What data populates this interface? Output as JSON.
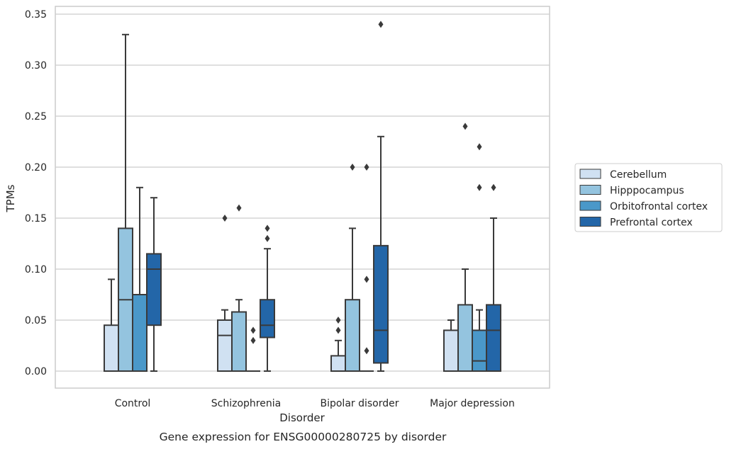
{
  "caption": "Gene expression for ENSG00000280725 by disorder",
  "chart_data": {
    "type": "box",
    "xlabel": "Disorder",
    "ylabel": "TPMs",
    "ylim": [
      -0.017,
      0.357
    ],
    "yticks": [
      0.0,
      0.05,
      0.1,
      0.15,
      0.2,
      0.25,
      0.3,
      0.35
    ],
    "ytick_labels": [
      "0.00",
      "0.05",
      "0.10",
      "0.15",
      "0.20",
      "0.25",
      "0.30",
      "0.35"
    ],
    "grid": "horizontal",
    "legend_position": "right",
    "categories": [
      "Control",
      "Schizophrenia",
      "Bipolar disorder",
      "Major depression"
    ],
    "series": [
      {
        "name": "Cerebellum",
        "color": "#d0e1f2",
        "boxes": [
          {
            "q1": 0.0,
            "median": 0.0,
            "q3": 0.045,
            "whisker_low": 0.0,
            "whisker_high": 0.09,
            "outliers": []
          },
          {
            "q1": 0.0,
            "median": 0.035,
            "q3": 0.05,
            "whisker_low": 0.0,
            "whisker_high": 0.06,
            "outliers": [
              0.15
            ]
          },
          {
            "q1": 0.0,
            "median": 0.0,
            "q3": 0.015,
            "whisker_low": 0.0,
            "whisker_high": 0.03,
            "outliers": [
              0.04,
              0.05
            ]
          },
          {
            "q1": 0.0,
            "median": 0.0,
            "q3": 0.04,
            "whisker_low": 0.0,
            "whisker_high": 0.05,
            "outliers": []
          }
        ]
      },
      {
        "name": "Hipppocampus",
        "color": "#94c4df",
        "boxes": [
          {
            "q1": 0.0,
            "median": 0.07,
            "q3": 0.14,
            "whisker_low": 0.0,
            "whisker_high": 0.33,
            "outliers": []
          },
          {
            "q1": 0.0,
            "median": 0.0,
            "q3": 0.058,
            "whisker_low": 0.0,
            "whisker_high": 0.07,
            "outliers": [
              0.16
            ]
          },
          {
            "q1": 0.0,
            "median": 0.0,
            "q3": 0.07,
            "whisker_low": 0.0,
            "whisker_high": 0.14,
            "outliers": [
              0.2
            ]
          },
          {
            "q1": 0.0,
            "median": 0.0,
            "q3": 0.065,
            "whisker_low": 0.0,
            "whisker_high": 0.1,
            "outliers": [
              0.24
            ]
          }
        ]
      },
      {
        "name": "Orbitofrontal cortex",
        "color": "#4a98c9",
        "boxes": [
          {
            "q1": 0.0,
            "median": 0.0,
            "q3": 0.075,
            "whisker_low": 0.0,
            "whisker_high": 0.18,
            "outliers": []
          },
          {
            "q1": 0.0,
            "median": 0.0,
            "q3": 0.0,
            "whisker_low": 0.0,
            "whisker_high": 0.0,
            "outliers": [
              0.03,
              0.04
            ]
          },
          {
            "q1": 0.0,
            "median": 0.0,
            "q3": 0.0,
            "whisker_low": 0.0,
            "whisker_high": 0.0,
            "outliers": [
              0.02,
              0.09,
              0.2
            ]
          },
          {
            "q1": 0.0,
            "median": 0.01,
            "q3": 0.04,
            "whisker_low": 0.0,
            "whisker_high": 0.06,
            "outliers": [
              0.18,
              0.22
            ]
          }
        ]
      },
      {
        "name": "Prefrontal cortex",
        "color": "#2366a8",
        "boxes": [
          {
            "q1": 0.045,
            "median": 0.1,
            "q3": 0.115,
            "whisker_low": 0.0,
            "whisker_high": 0.17,
            "outliers": []
          },
          {
            "q1": 0.033,
            "median": 0.045,
            "q3": 0.07,
            "whisker_low": 0.0,
            "whisker_high": 0.12,
            "outliers": [
              0.13,
              0.14
            ]
          },
          {
            "q1": 0.008,
            "median": 0.04,
            "q3": 0.123,
            "whisker_low": 0.0,
            "whisker_high": 0.23,
            "outliers": [
              0.34
            ]
          },
          {
            "q1": 0.0,
            "median": 0.04,
            "q3": 0.065,
            "whisker_low": 0.0,
            "whisker_high": 0.15,
            "outliers": [
              0.18
            ]
          }
        ]
      }
    ],
    "colors": {
      "edge": "#3a3a3a",
      "grid": "#cccccc",
      "frame": "#cccccc"
    }
  }
}
